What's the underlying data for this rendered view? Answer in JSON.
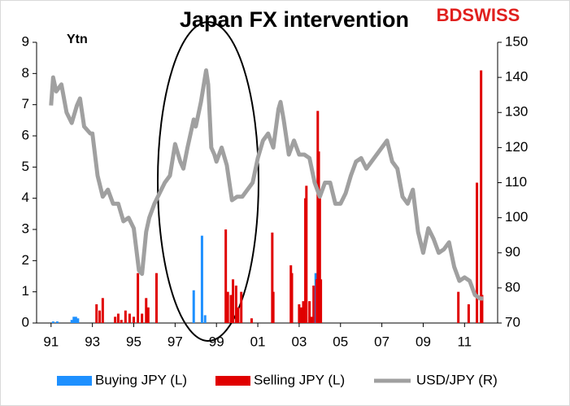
{
  "chart_data": {
    "type": "bar",
    "title": "Japan FX intervention",
    "logo": "BDSWISS",
    "y_label": "Ytn",
    "xlim": [
      1990.3,
      2012.6
    ],
    "xticks": [
      {
        "value": 1991,
        "label": "91"
      },
      {
        "value": 1993,
        "label": "93"
      },
      {
        "value": 1995,
        "label": "95"
      },
      {
        "value": 1997,
        "label": "97"
      },
      {
        "value": 1999,
        "label": "99"
      },
      {
        "value": 2001,
        "label": "01"
      },
      {
        "value": 2003,
        "label": "03"
      },
      {
        "value": 2005,
        "label": "05"
      },
      {
        "value": 2007,
        "label": "07"
      },
      {
        "value": 2009,
        "label": "09"
      },
      {
        "value": 2011,
        "label": "11"
      }
    ],
    "ylim": [
      0,
      9
    ],
    "yticks": [
      0,
      1,
      2,
      3,
      4,
      5,
      6,
      7,
      8,
      9
    ],
    "y2lim": [
      70,
      150
    ],
    "y2ticks": [
      70,
      80,
      90,
      100,
      110,
      120,
      130,
      140,
      150
    ],
    "series": [
      {
        "name": "Buying JPY (L)",
        "type": "bar",
        "color": "#1e90ff",
        "x": [
          1991.1,
          1991.3,
          1992.0,
          1992.1,
          1992.2,
          1992.3,
          1997.9,
          1998.3,
          1998.45,
          2003.8
        ],
        "values": [
          0.05,
          0.05,
          0.1,
          0.2,
          0.2,
          0.15,
          1.05,
          2.8,
          0.25,
          1.6
        ]
      },
      {
        "name": "Selling JPY (L)",
        "type": "bar",
        "color": "#e00000",
        "x": [
          1993.2,
          1993.35,
          1993.5,
          1994.1,
          1994.25,
          1994.4,
          1994.6,
          1994.8,
          1995.0,
          1995.2,
          1995.4,
          1995.6,
          1995.7,
          1996.1,
          1999.45,
          1999.55,
          1999.7,
          1999.8,
          1999.95,
          2000.05,
          2000.2,
          2000.7,
          2001.7,
          2001.75,
          2002.6,
          2002.65,
          2003.0,
          2003.1,
          2003.2,
          2003.3,
          2003.35,
          2003.5,
          2003.6,
          2003.7,
          2003.85,
          2003.9,
          2003.95,
          2004.0,
          2004.05,
          2010.7,
          2011.2,
          2011.6,
          2011.8,
          2011.85
        ],
        "values": [
          0.6,
          0.4,
          0.8,
          0.2,
          0.3,
          0.1,
          0.4,
          0.3,
          0.2,
          1.6,
          0.3,
          0.8,
          0.5,
          1.6,
          3.0,
          1.0,
          0.9,
          1.4,
          1.2,
          0.5,
          1.0,
          0.15,
          2.9,
          1.0,
          1.85,
          1.6,
          0.6,
          0.5,
          0.7,
          4.0,
          4.4,
          0.7,
          0.2,
          1.2,
          1.4,
          6.8,
          5.5,
          4.2,
          1.4,
          1.0,
          0.6,
          4.5,
          8.1,
          0.9
        ]
      },
      {
        "name": "USD/JPY (R)",
        "type": "line",
        "axis": "y2",
        "color": "#a0a0a0",
        "x": [
          1991.0,
          1991.1,
          1991.25,
          1991.5,
          1991.75,
          1992.0,
          1992.25,
          1992.4,
          1992.6,
          1992.9,
          1993.0,
          1993.25,
          1993.5,
          1993.75,
          1994.0,
          1994.25,
          1994.5,
          1994.75,
          1995.0,
          1995.25,
          1995.4,
          1995.6,
          1995.75,
          1996.0,
          1996.25,
          1996.5,
          1996.75,
          1997.0,
          1997.25,
          1997.4,
          1997.6,
          1997.9,
          1998.0,
          1998.25,
          1998.5,
          1998.6,
          1998.75,
          1998.9,
          1999.0,
          1999.25,
          1999.5,
          1999.75,
          2000.0,
          2000.25,
          2000.5,
          2000.75,
          2001.0,
          2001.25,
          2001.5,
          2001.75,
          2002.0,
          2002.1,
          2002.25,
          2002.5,
          2002.75,
          2003.0,
          2003.25,
          2003.5,
          2003.75,
          2004.0,
          2004.25,
          2004.5,
          2004.75,
          2005.0,
          2005.25,
          2005.5,
          2005.75,
          2006.0,
          2006.25,
          2006.5,
          2006.75,
          2007.0,
          2007.25,
          2007.5,
          2007.75,
          2008.0,
          2008.25,
          2008.5,
          2008.75,
          2009.0,
          2009.25,
          2009.5,
          2009.75,
          2010.0,
          2010.25,
          2010.5,
          2010.75,
          2011.0,
          2011.25,
          2011.5,
          2011.75,
          2011.9
        ],
        "values": [
          132,
          140,
          136,
          138,
          130,
          127,
          132,
          134,
          126,
          124,
          124,
          112,
          106,
          108,
          104,
          104,
          99,
          100,
          97,
          85,
          84,
          96,
          100,
          104,
          107,
          110,
          112,
          121,
          116,
          114,
          120,
          128,
          126,
          133,
          142,
          138,
          120,
          118,
          116,
          120,
          115,
          105,
          106,
          106,
          108,
          110,
          117,
          122,
          124,
          120,
          131,
          133,
          128,
          118,
          122,
          118,
          118,
          117,
          110,
          106,
          110,
          110,
          104,
          104,
          107,
          112,
          116,
          117,
          114,
          116,
          118,
          120,
          122,
          116,
          114,
          106,
          104,
          108,
          96,
          90,
          97,
          94,
          90,
          91,
          93,
          86,
          82,
          83,
          82,
          78,
          77,
          77
        ]
      }
    ]
  }
}
